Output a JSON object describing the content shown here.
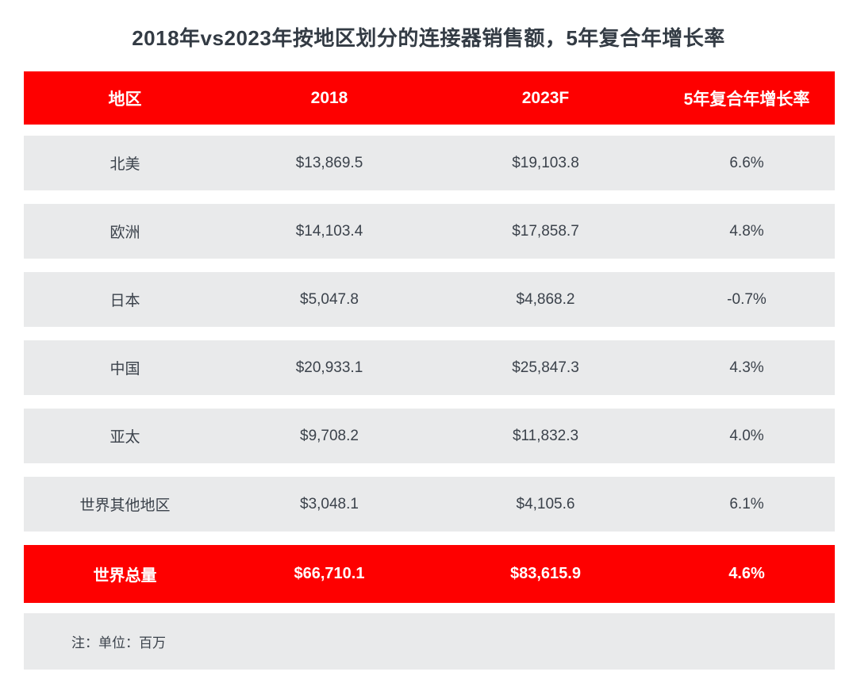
{
  "title": "2018年vs2023年按地区划分的连接器销售额，5年复合年增长率",
  "table": {
    "headers": [
      "地区",
      "2018",
      "2023F",
      "5年复合年增长率"
    ],
    "rows": [
      [
        "北美",
        "$13,869.5",
        "$19,103.8",
        "6.6%"
      ],
      [
        "欧洲",
        "$14,103.4",
        "$17,858.7",
        "4.8%"
      ],
      [
        "日本",
        "$5,047.8",
        "$4,868.2",
        "-0.7%"
      ],
      [
        "中国",
        "$20,933.1",
        "$25,847.3",
        "4.3%"
      ],
      [
        "亚太",
        "$9,708.2",
        "$11,832.3",
        "4.0%"
      ],
      [
        "世界其他地区",
        "$3,048.1",
        "$4,105.6",
        "6.1%"
      ]
    ],
    "total": [
      "世界总量",
      "$66,710.1",
      "$83,615.9",
      "4.6%"
    ],
    "note": "注：单位：百万"
  },
  "colors": {
    "accent_red": "#FE0000",
    "row_gray": "#E9EAEB",
    "header_text": "#FFFFFF",
    "body_text": "#3B424B",
    "title_text": "#333B44",
    "background": "#FFFFFF"
  },
  "chart_data": {
    "type": "table",
    "title": "2018年vs2023年按地区划分的连接器销售额，5年复合年增长率",
    "columns": [
      "地区",
      "2018",
      "2023F",
      "5年复合年增长率"
    ],
    "rows": [
      [
        "北美",
        13869.5,
        19103.8,
        "6.6%"
      ],
      [
        "欧洲",
        14103.4,
        17858.7,
        "4.8%"
      ],
      [
        "日本",
        5047.8,
        4868.2,
        "-0.7%"
      ],
      [
        "中国",
        20933.1,
        25847.3,
        "4.3%"
      ],
      [
        "亚太",
        9708.2,
        11832.3,
        "4.0%"
      ],
      [
        "世界其他地区",
        3048.1,
        4105.6,
        "6.1%"
      ]
    ],
    "total_row": [
      "世界总量",
      66710.1,
      83615.9,
      "4.6%"
    ],
    "units": "百万",
    "note": "注：单位：百万"
  }
}
